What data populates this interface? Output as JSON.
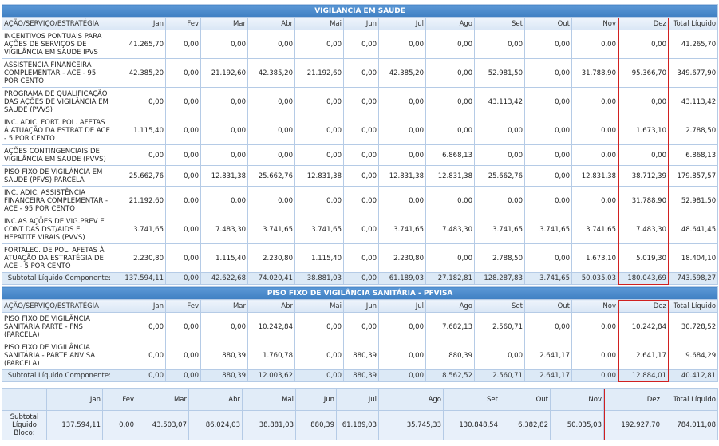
{
  "sections": [
    {
      "title": "VIGILANCIA EM SAUDE",
      "header": [
        "AÇÃO/SERVIÇO/ESTRATÉGIA",
        "Jan",
        "Fev",
        "Mar",
        "Abr",
        "Mai",
        "Jun",
        "Jul",
        "Ago",
        "Set",
        "Out",
        "Nov",
        "Dez",
        "Total Líquido"
      ],
      "rows": [
        [
          "INCENTIVOS PONTUAIS PARA AÇÕES DE SERVIÇOS DE VIGILÂNCIA EM SAUDE IPVS",
          "41.265,70",
          "0,00",
          "0,00",
          "0,00",
          "0,00",
          "0,00",
          "0,00",
          "0,00",
          "0,00",
          "0,00",
          "0,00",
          "0,00",
          "41.265,70"
        ],
        [
          "ASSISTÊNCIA FINANCEIRA COMPLEMENTAR - ACE - 95 POR CENTO",
          "42.385,20",
          "0,00",
          "21.192,60",
          "42.385,20",
          "21.192,60",
          "0,00",
          "42.385,20",
          "0,00",
          "52.981,50",
          "0,00",
          "31.788,90",
          "95.366,70",
          "349.677,90"
        ],
        [
          "PROGRAMA DE QUALIFICAÇÃO DAS AÇÕES DE VIGILÂNCIA EM SAUDE (PVVS)",
          "0,00",
          "0,00",
          "0,00",
          "0,00",
          "0,00",
          "0,00",
          "0,00",
          "0,00",
          "43.113,42",
          "0,00",
          "0,00",
          "0,00",
          "43.113,42"
        ],
        [
          "INC. ADIC. FORT. POL. AFETAS À ATUAÇÃO DA ESTRAT DE ACE - 5 POR CENTO",
          "1.115,40",
          "0,00",
          "0,00",
          "0,00",
          "0,00",
          "0,00",
          "0,00",
          "0,00",
          "0,00",
          "0,00",
          "0,00",
          "1.673,10",
          "2.788,50"
        ],
        [
          "AÇÕES CONTINGENCIAIS DE VIGILÂNCIA EM SAUDE (PVVS)",
          "0,00",
          "0,00",
          "0,00",
          "0,00",
          "0,00",
          "0,00",
          "0,00",
          "6.868,13",
          "0,00",
          "0,00",
          "0,00",
          "0,00",
          "6.868,13"
        ],
        [
          "PISO FIXO DE VIGILÂNCIA EM SAUDE (PFVS) PARCELA",
          "25.662,76",
          "0,00",
          "12.831,38",
          "25.662,76",
          "12.831,38",
          "0,00",
          "12.831,38",
          "12.831,38",
          "25.662,76",
          "0,00",
          "12.831,38",
          "38.712,39",
          "179.857,57"
        ],
        [
          "INC. ADIC. ASSISTÊNCIA FINANCEIRA COMPLEMENTAR - ACE - 95 POR CENTO",
          "21.192,60",
          "0,00",
          "0,00",
          "0,00",
          "0,00",
          "0,00",
          "0,00",
          "0,00",
          "0,00",
          "0,00",
          "0,00",
          "31.788,90",
          "52.981,50"
        ],
        [
          "INC.AS AÇÕES DE VIG.PREV E CONT DAS DST/AIDS E HEPATITE VIRAIS (PVVS)",
          "3.741,65",
          "0,00",
          "7.483,30",
          "3.741,65",
          "3.741,65",
          "0,00",
          "3.741,65",
          "7.483,30",
          "3.741,65",
          "3.741,65",
          "3.741,65",
          "7.483,30",
          "48.641,45"
        ],
        [
          "FORTALEC. DE POL. AFETAS À ATUAÇÃO DA ESTRATÉGIA DE ACE - 5 POR CENTO",
          "2.230,80",
          "0,00",
          "1.115,40",
          "2.230,80",
          "1.115,40",
          "0,00",
          "2.230,80",
          "0,00",
          "2.788,50",
          "0,00",
          "1.673,10",
          "5.019,30",
          "18.404,10"
        ]
      ],
      "subtotal": [
        "Subtotal Líquido Componente:",
        "137.594,11",
        "0,00",
        "42.622,68",
        "74.020,41",
        "38.881,03",
        "0,00",
        "61.189,03",
        "27.182,81",
        "128.287,83",
        "3.741,65",
        "50.035,03",
        "180.043,69",
        "743.598,27"
      ]
    },
    {
      "title": "PISO FIXO DE VIGILÂNCIA SANITÁRIA - PFVISA",
      "header": [
        "AÇÃO/SERVIÇO/ESTRATÉGIA",
        "Jan",
        "Fev",
        "Mar",
        "Abr",
        "Mai",
        "Jun",
        "Jul",
        "Ago",
        "Set",
        "Out",
        "Nov",
        "Dez",
        "Total Líquido"
      ],
      "rows": [
        [
          "PISO FIXO DE VIGILÂNCIA SANITÁRIA PARTE - FNS (PARCELA)",
          "0,00",
          "0,00",
          "0,00",
          "10.242,84",
          "0,00",
          "0,00",
          "0,00",
          "7.682,13",
          "2.560,71",
          "0,00",
          "0,00",
          "10.242,84",
          "30.728,52"
        ],
        [
          "PISO FIXO DE VIGILÂNCIA SANITÁRIA - PARTE ANVISA (PARCELA)",
          "0,00",
          "0,00",
          "880,39",
          "1.760,78",
          "0,00",
          "880,39",
          "0,00",
          "880,39",
          "0,00",
          "2.641,17",
          "0,00",
          "2.641,17",
          "9.684,29"
        ]
      ],
      "subtotal": [
        "Subtotal Líquido Componente:",
        "0,00",
        "0,00",
        "880,39",
        "12.003,62",
        "0,00",
        "880,39",
        "0,00",
        "8.562,52",
        "2.560,71",
        "2.641,17",
        "0,00",
        "12.884,01",
        "40.412,81"
      ]
    }
  ],
  "summary": {
    "header": [
      "Jan",
      "Fev",
      "Mar",
      "Abr",
      "Mai",
      "Jun",
      "Jul",
      "Ago",
      "Set",
      "Out",
      "Nov",
      "Dez",
      "Total Líquido"
    ],
    "label": "Subtotal Líquido Bloco:",
    "values": [
      "137.594,11",
      "0,00",
      "43.503,07",
      "86.024,03",
      "38.881,03",
      "880,39",
      "61.189,03",
      "35.745,33",
      "130.848,54",
      "6.382,82",
      "50.035,03",
      "192.927,70",
      "784.011,08"
    ]
  }
}
